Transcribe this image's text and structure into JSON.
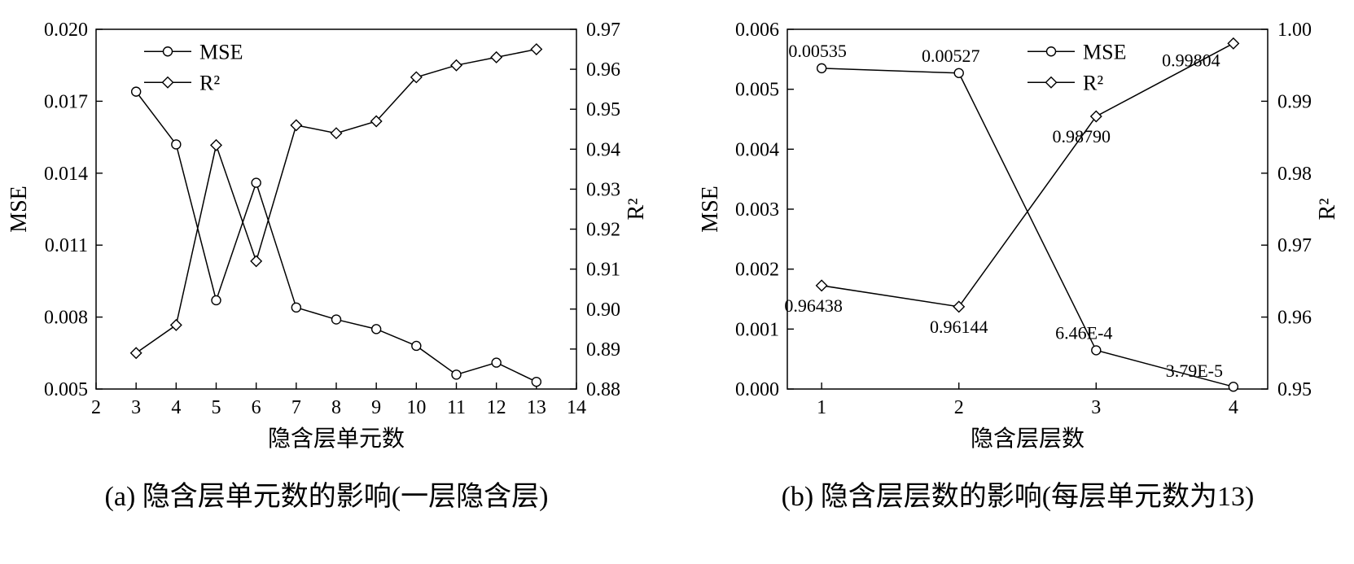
{
  "chart_data": [
    {
      "type": "line",
      "title": "(a) 隐含层单元数的影响(一层隐含层)",
      "xlabel": "隐含层单元数",
      "ylabel_left": "MSE",
      "ylabel_right": "R²",
      "xlim": [
        2,
        14
      ],
      "xticks": [
        2,
        3,
        4,
        5,
        6,
        7,
        8,
        9,
        10,
        11,
        12,
        13,
        14
      ],
      "ylim_left": [
        0.005,
        0.02
      ],
      "yticks_left": [
        0.005,
        0.008,
        0.011,
        0.014,
        0.017,
        0.02
      ],
      "decimals_left": 3,
      "ylim_right": [
        0.88,
        0.97
      ],
      "yticks_right": [
        0.88,
        0.89,
        0.9,
        0.91,
        0.92,
        0.93,
        0.94,
        0.95,
        0.96,
        0.97
      ],
      "decimals_right": 2,
      "grid": false,
      "legend_pos": [
        0.1,
        0.03
      ],
      "x": [
        3,
        4,
        5,
        6,
        7,
        8,
        9,
        10,
        11,
        12,
        13
      ],
      "series": [
        {
          "name": "MSE",
          "axis": "left",
          "marker": "circle",
          "values": [
            0.0174,
            0.0152,
            0.0087,
            0.0136,
            0.0084,
            0.0079,
            0.0075,
            0.0068,
            0.0056,
            0.0061,
            0.0053
          ]
        },
        {
          "name": "R²",
          "axis": "right",
          "marker": "diamond",
          "values": [
            0.889,
            0.896,
            0.941,
            0.912,
            0.946,
            0.944,
            0.947,
            0.958,
            0.961,
            0.963,
            0.965
          ]
        }
      ]
    },
    {
      "type": "line",
      "title": "(b) 隐含层层数的影响(每层单元数为13)",
      "xlabel": "隐含层层数",
      "ylabel_left": "MSE",
      "ylabel_right": "R²",
      "xlim": [
        0.75,
        4.25
      ],
      "xticks": [
        1,
        2,
        3,
        4
      ],
      "ylim_left": [
        0.0,
        0.006
      ],
      "yticks_left": [
        0.0,
        0.001,
        0.002,
        0.003,
        0.004,
        0.005,
        0.006
      ],
      "decimals_left": 3,
      "ylim_right": [
        0.95,
        1.0
      ],
      "yticks_right": [
        0.95,
        0.96,
        0.97,
        0.98,
        0.99,
        1.0
      ],
      "decimals_right": 2,
      "grid": false,
      "legend_pos": [
        0.5,
        0.03
      ],
      "x": [
        1,
        2,
        3,
        4
      ],
      "series": [
        {
          "name": "MSE",
          "axis": "left",
          "marker": "circle",
          "values": [
            0.00535,
            0.00527,
            0.000646,
            3.79e-05
          ],
          "point_labels": [
            {
              "text": "0.00535",
              "dx": -5,
              "dy": -14
            },
            {
              "text": "0.00527",
              "dx": -10,
              "dy": -14
            },
            {
              "text": "6.46E-4",
              "dx": -15,
              "dy": -14
            },
            {
              "text": "3.79E-5",
              "dx": -48,
              "dy": -12
            }
          ]
        },
        {
          "name": "R²",
          "axis": "right",
          "marker": "diamond",
          "values": [
            0.96438,
            0.96144,
            0.9879,
            0.99804
          ],
          "point_labels": [
            {
              "text": "0.96438",
              "dx": -10,
              "dy": 32
            },
            {
              "text": "0.96144",
              "dx": 0,
              "dy": 32
            },
            {
              "text": "0.98790",
              "dx": -18,
              "dy": 32
            },
            {
              "text": "0.99804",
              "dx": -52,
              "dy": 28
            }
          ]
        }
      ]
    }
  ]
}
